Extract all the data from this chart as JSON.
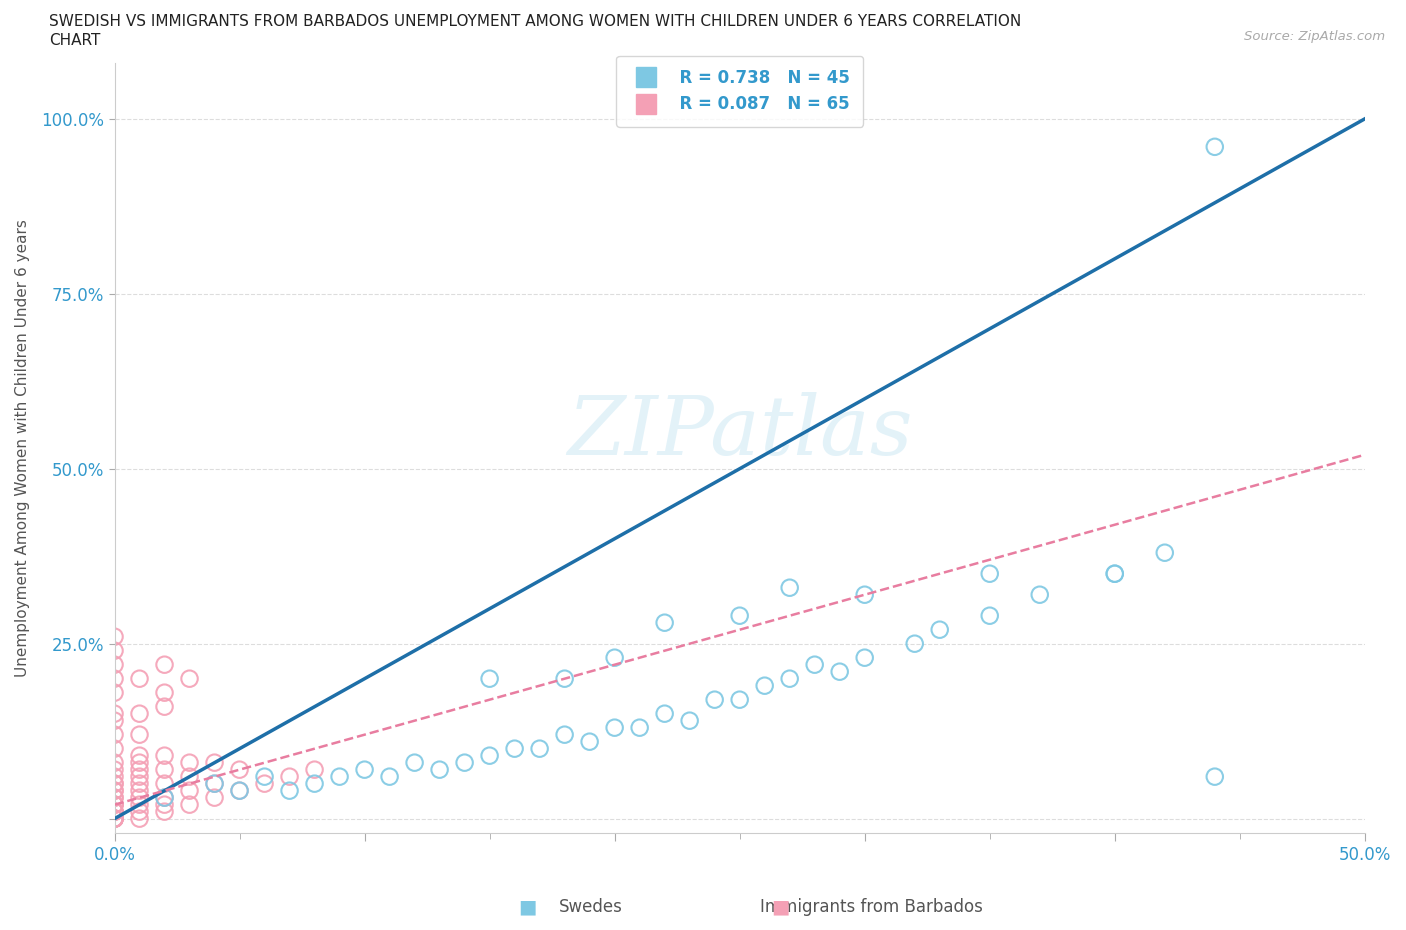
{
  "title_line1": "SWEDISH VS IMMIGRANTS FROM BARBADOS UNEMPLOYMENT AMONG WOMEN WITH CHILDREN UNDER 6 YEARS CORRELATION",
  "title_line2": "CHART",
  "source": "Source: ZipAtlas.com",
  "ylabel": "Unemployment Among Women with Children Under 6 years",
  "xlim": [
    0.0,
    0.5
  ],
  "ylim": [
    -0.02,
    1.08
  ],
  "swedes_R": 0.738,
  "swedes_N": 45,
  "immigrants_R": 0.087,
  "immigrants_N": 65,
  "swedes_color": "#7ec8e3",
  "immigrants_color": "#f4a0b5",
  "background_color": "#ffffff",
  "watermark": "ZIPatlas",
  "swedes_trend_color": "#1e6fa8",
  "immigrants_trend_color": "#e87da0",
  "swedes_x": [
    0.02,
    0.04,
    0.05,
    0.06,
    0.07,
    0.08,
    0.09,
    0.1,
    0.11,
    0.12,
    0.13,
    0.14,
    0.15,
    0.16,
    0.17,
    0.18,
    0.19,
    0.2,
    0.21,
    0.22,
    0.23,
    0.24,
    0.25,
    0.26,
    0.27,
    0.28,
    0.29,
    0.3,
    0.32,
    0.33,
    0.35,
    0.37,
    0.4,
    0.42,
    0.44,
    0.15,
    0.18,
    0.2,
    0.22,
    0.25,
    0.27,
    0.3,
    0.35,
    0.4,
    0.44
  ],
  "swedes_y": [
    0.03,
    0.05,
    0.04,
    0.06,
    0.04,
    0.05,
    0.06,
    0.07,
    0.06,
    0.08,
    0.07,
    0.08,
    0.09,
    0.1,
    0.1,
    0.12,
    0.11,
    0.13,
    0.13,
    0.15,
    0.14,
    0.17,
    0.17,
    0.19,
    0.2,
    0.22,
    0.21,
    0.23,
    0.25,
    0.27,
    0.29,
    0.32,
    0.35,
    0.38,
    0.06,
    0.2,
    0.2,
    0.23,
    0.28,
    0.29,
    0.33,
    0.32,
    0.35,
    0.35,
    0.96
  ],
  "immigrants_x": [
    0.0,
    0.0,
    0.0,
    0.0,
    0.0,
    0.0,
    0.0,
    0.0,
    0.0,
    0.0,
    0.0,
    0.0,
    0.0,
    0.0,
    0.0,
    0.0,
    0.0,
    0.0,
    0.0,
    0.0,
    0.01,
    0.01,
    0.01,
    0.01,
    0.01,
    0.01,
    0.01,
    0.01,
    0.01,
    0.01,
    0.02,
    0.02,
    0.02,
    0.02,
    0.02,
    0.02,
    0.03,
    0.03,
    0.03,
    0.03,
    0.04,
    0.04,
    0.04,
    0.05,
    0.05,
    0.06,
    0.07,
    0.08,
    0.0,
    0.0,
    0.0,
    0.0,
    0.0,
    0.0,
    0.0,
    0.01,
    0.01,
    0.02,
    0.02,
    0.03,
    0.0,
    0.0,
    0.0,
    0.01,
    0.02
  ],
  "immigrants_y": [
    0.0,
    0.0,
    0.0,
    0.0,
    0.0,
    0.0,
    0.01,
    0.01,
    0.01,
    0.02,
    0.02,
    0.02,
    0.03,
    0.03,
    0.04,
    0.04,
    0.05,
    0.05,
    0.06,
    0.07,
    0.0,
    0.01,
    0.02,
    0.03,
    0.04,
    0.05,
    0.06,
    0.07,
    0.08,
    0.09,
    0.01,
    0.02,
    0.03,
    0.05,
    0.07,
    0.09,
    0.02,
    0.04,
    0.06,
    0.08,
    0.03,
    0.05,
    0.08,
    0.04,
    0.07,
    0.05,
    0.06,
    0.07,
    0.12,
    0.14,
    0.18,
    0.2,
    0.22,
    0.24,
    0.26,
    0.15,
    0.2,
    0.18,
    0.22,
    0.2,
    0.08,
    0.1,
    0.15,
    0.12,
    0.16
  ],
  "sw_trend_x": [
    0.0,
    0.5
  ],
  "sw_trend_y": [
    0.0,
    1.0
  ],
  "im_trend_x": [
    0.0,
    0.5
  ],
  "im_trend_y": [
    0.02,
    0.52
  ]
}
